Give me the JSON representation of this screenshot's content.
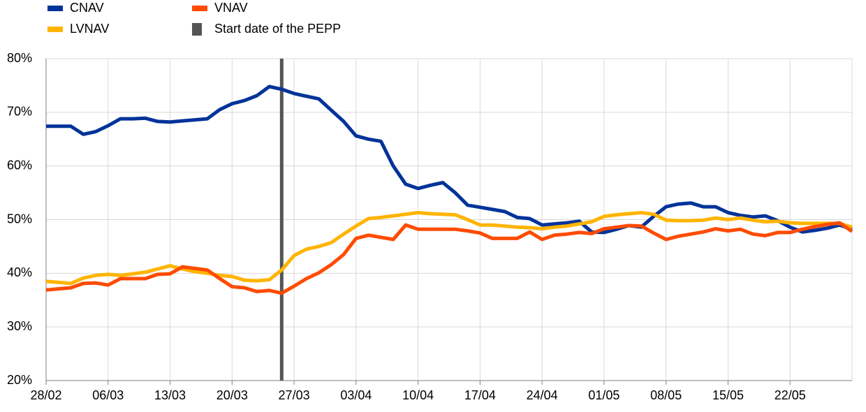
{
  "chart_data": {
    "type": "line",
    "categories": [
      "28/02",
      null,
      null,
      null,
      null,
      "06/03",
      null,
      null,
      null,
      null,
      "13/03",
      null,
      null,
      null,
      null,
      "20/03",
      null,
      null,
      null,
      null,
      "27/03",
      null,
      null,
      null,
      null,
      "03/04",
      null,
      null,
      null,
      null,
      "10/04",
      null,
      null,
      null,
      null,
      "17/04",
      null,
      null,
      null,
      null,
      "24/04",
      null,
      null,
      null,
      null,
      "01/05",
      null,
      null,
      null,
      null,
      "08/05",
      null,
      null,
      null,
      null,
      "15/05",
      null,
      null,
      null,
      null,
      "22/05",
      null,
      null,
      null,
      null,
      null
    ],
    "series": [
      {
        "name": "CNAV",
        "color": "#003399",
        "values": [
          67.4,
          67.4,
          67.4,
          65.9,
          66.4,
          67.5,
          68.8,
          68.8,
          68.9,
          68.3,
          68.2,
          68.4,
          68.6,
          68.8,
          70.5,
          71.6,
          72.2,
          73.1,
          74.8,
          74.3,
          73.5,
          73.0,
          72.5,
          70.4,
          68.3,
          65.6,
          65.0,
          64.6,
          60.0,
          56.6,
          55.8,
          56.4,
          56.9,
          55.0,
          52.7,
          52.3,
          51.9,
          51.5,
          50.4,
          50.2,
          49.0,
          49.2,
          49.4,
          49.7,
          47.7,
          47.6,
          48.2,
          48.9,
          48.6,
          50.6,
          52.4,
          52.9,
          53.1,
          52.4,
          52.4,
          51.3,
          50.8,
          50.5,
          50.7,
          49.8,
          48.6,
          47.7,
          48.0,
          48.4,
          49.0,
          48.2
        ]
      },
      {
        "name": "LVNAV",
        "color": "#ffb400",
        "values": [
          38.5,
          38.3,
          38.1,
          39.1,
          39.6,
          39.8,
          39.6,
          39.9,
          40.2,
          40.8,
          41.4,
          40.8,
          40.3,
          40.0,
          39.6,
          39.4,
          38.7,
          38.6,
          38.8,
          40.6,
          43.3,
          44.5,
          45.0,
          45.7,
          47.3,
          48.8,
          50.2,
          50.4,
          50.7,
          51.0,
          51.3,
          51.1,
          51.0,
          50.9,
          50.0,
          49.0,
          49.0,
          48.8,
          48.6,
          48.5,
          48.3,
          48.6,
          48.8,
          49.2,
          49.6,
          50.6,
          50.9,
          51.1,
          51.3,
          51.0,
          49.9,
          49.8,
          49.8,
          49.9,
          50.3,
          50.0,
          50.3,
          49.9,
          49.6,
          49.7,
          49.4,
          49.3,
          49.3,
          49.3,
          49.3,
          48.6
        ]
      },
      {
        "name": "VNAV",
        "color": "#ff4b00",
        "values": [
          36.9,
          37.1,
          37.3,
          38.1,
          38.2,
          37.8,
          39.0,
          39.0,
          39.0,
          39.8,
          39.9,
          41.2,
          40.9,
          40.6,
          39.0,
          37.5,
          37.3,
          36.6,
          36.8,
          36.3,
          37.6,
          39.0,
          40.1,
          41.6,
          43.5,
          46.5,
          47.1,
          46.7,
          46.3,
          49.0,
          48.2,
          48.2,
          48.2,
          48.2,
          47.9,
          47.5,
          46.5,
          46.5,
          46.5,
          47.7,
          46.3,
          47.1,
          47.3,
          47.6,
          47.4,
          48.3,
          48.6,
          48.9,
          48.8,
          47.5,
          46.3,
          46.9,
          47.3,
          47.7,
          48.3,
          47.9,
          48.2,
          47.3,
          47.0,
          47.6,
          47.6,
          48.2,
          48.7,
          49.1,
          49.4,
          47.8
        ]
      }
    ],
    "vertical_line": {
      "name": "Start date of the PEPP",
      "color": "#555555",
      "x": 19
    },
    "ylim": [
      20,
      80
    ],
    "yticks": [
      {
        "value": 20,
        "label": "20%"
      },
      {
        "value": 30,
        "label": "30%"
      },
      {
        "value": 40,
        "label": "40%"
      },
      {
        "value": 50,
        "label": "50%"
      },
      {
        "value": 60,
        "label": "60%"
      },
      {
        "value": 70,
        "label": "70%"
      },
      {
        "value": 80,
        "label": "80%"
      }
    ],
    "grid": true
  }
}
